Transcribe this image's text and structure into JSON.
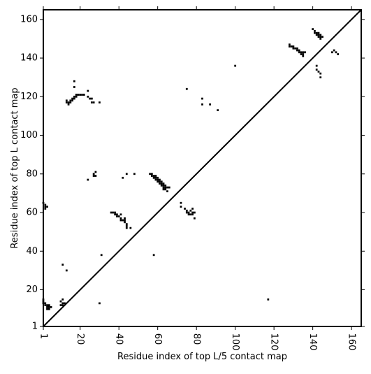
{
  "chart_data": {
    "type": "scatter",
    "title": "",
    "xlabel": "Residue index of top L/5 contact map",
    "ylabel": "Residue index of top L contact map",
    "xlim": [
      1,
      165
    ],
    "ylim": [
      1,
      165
    ],
    "x_ticks": [
      1,
      20,
      40,
      60,
      80,
      100,
      120,
      140,
      160
    ],
    "y_ticks": [
      1,
      20,
      40,
      60,
      80,
      100,
      120,
      140,
      160
    ],
    "x_tick_rotation": -90,
    "grid": false,
    "diagonal": {
      "from": [
        1,
        1
      ],
      "to": [
        165,
        165
      ],
      "color": "#000000"
    },
    "marker_color": "#000000",
    "upper_triangle": {
      "description_key": "top L/5",
      "points": [
        [
          128,
          147
        ],
        [
          128,
          146
        ],
        [
          129,
          146
        ],
        [
          130,
          146
        ],
        [
          130,
          145
        ],
        [
          131,
          145
        ],
        [
          132,
          145
        ],
        [
          132,
          144
        ],
        [
          133,
          144
        ],
        [
          133,
          143
        ],
        [
          134,
          143
        ],
        [
          134,
          142
        ],
        [
          135,
          143
        ],
        [
          135,
          142
        ],
        [
          136,
          143
        ],
        [
          135,
          141
        ],
        [
          140,
          155
        ],
        [
          141,
          154
        ],
        [
          141,
          153
        ],
        [
          142,
          153
        ],
        [
          142,
          152
        ],
        [
          143,
          153
        ],
        [
          143,
          152
        ],
        [
          143,
          151
        ],
        [
          144,
          152
        ],
        [
          144,
          151
        ],
        [
          144,
          150
        ],
        [
          145,
          151
        ],
        [
          150,
          143
        ],
        [
          151,
          144
        ],
        [
          152,
          143
        ],
        [
          153,
          142
        ],
        [
          142,
          136
        ],
        [
          142,
          134
        ],
        [
          143,
          133
        ],
        [
          144,
          132
        ],
        [
          144,
          130
        ],
        [
          100,
          136
        ],
        [
          75,
          124
        ],
        [
          83,
          119
        ],
        [
          83,
          116
        ],
        [
          87,
          116
        ],
        [
          91,
          113
        ]
      ]
    },
    "lower_triangle": {
      "description_key": "top L",
      "points": [
        [
          1,
          15
        ],
        [
          1,
          14
        ],
        [
          1,
          13
        ],
        [
          2,
          13
        ],
        [
          2,
          12
        ],
        [
          3,
          12
        ],
        [
          4,
          12
        ],
        [
          3,
          11
        ],
        [
          4,
          11
        ],
        [
          5,
          11
        ],
        [
          3,
          10
        ],
        [
          4,
          10
        ],
        [
          11,
          15
        ],
        [
          10,
          14
        ],
        [
          11,
          13
        ],
        [
          12,
          13
        ],
        [
          11,
          12
        ],
        [
          10,
          12
        ],
        [
          13,
          30
        ],
        [
          11,
          33
        ],
        [
          30,
          13
        ],
        [
          117,
          15
        ],
        [
          13,
          118
        ],
        [
          13,
          117
        ],
        [
          14,
          117
        ],
        [
          14,
          116
        ],
        [
          15,
          118
        ],
        [
          15,
          117
        ],
        [
          16,
          119
        ],
        [
          16,
          118
        ],
        [
          17,
          120
        ],
        [
          17,
          119
        ],
        [
          18,
          120
        ],
        [
          18,
          121
        ],
        [
          19,
          121
        ],
        [
          20,
          121
        ],
        [
          21,
          121
        ],
        [
          22,
          121
        ],
        [
          17,
          125
        ],
        [
          17,
          128
        ],
        [
          24,
          123
        ],
        [
          24,
          120
        ],
        [
          25,
          119
        ],
        [
          26,
          119
        ],
        [
          26,
          117
        ],
        [
          27,
          117
        ],
        [
          30,
          117
        ],
        [
          36,
          60
        ],
        [
          37,
          60
        ],
        [
          38,
          60
        ],
        [
          38,
          59
        ],
        [
          39,
          59
        ],
        [
          39,
          58
        ],
        [
          40,
          58
        ],
        [
          41,
          59
        ],
        [
          41,
          57
        ],
        [
          41,
          56
        ],
        [
          42,
          56
        ],
        [
          43,
          57
        ],
        [
          43,
          56
        ],
        [
          43,
          55
        ],
        [
          44,
          54
        ],
        [
          44,
          53
        ],
        [
          44,
          52
        ],
        [
          46,
          52
        ],
        [
          56,
          80
        ],
        [
          57,
          80
        ],
        [
          57,
          79
        ],
        [
          58,
          79
        ],
        [
          58,
          78
        ],
        [
          59,
          79
        ],
        [
          59,
          78
        ],
        [
          59,
          77
        ],
        [
          60,
          78
        ],
        [
          60,
          77
        ],
        [
          60,
          76
        ],
        [
          61,
          77
        ],
        [
          61,
          76
        ],
        [
          61,
          75
        ],
        [
          62,
          76
        ],
        [
          62,
          75
        ],
        [
          62,
          74
        ],
        [
          63,
          75
        ],
        [
          63,
          74
        ],
        [
          63,
          73
        ],
        [
          63,
          72
        ],
        [
          64,
          74
        ],
        [
          64,
          73
        ],
        [
          64,
          72
        ],
        [
          65,
          73
        ],
        [
          65,
          71
        ],
        [
          66,
          73
        ],
        [
          42,
          78
        ],
        [
          44,
          80
        ],
        [
          48,
          80
        ],
        [
          24,
          77
        ],
        [
          27,
          79
        ],
        [
          27,
          80
        ],
        [
          28,
          79
        ],
        [
          28,
          81
        ],
        [
          58,
          38
        ],
        [
          31,
          38
        ],
        [
          1,
          65
        ],
        [
          2,
          64
        ],
        [
          2,
          63
        ],
        [
          2,
          62
        ],
        [
          3,
          63
        ],
        [
          72,
          65
        ],
        [
          72,
          63
        ],
        [
          74,
          62
        ],
        [
          75,
          61
        ],
        [
          75,
          60
        ],
        [
          76,
          59
        ],
        [
          77,
          61
        ],
        [
          77,
          59
        ],
        [
          78,
          60
        ],
        [
          78,
          59
        ],
        [
          79,
          60
        ],
        [
          79,
          57
        ],
        [
          78,
          62
        ],
        [
          76,
          60
        ]
      ]
    }
  }
}
